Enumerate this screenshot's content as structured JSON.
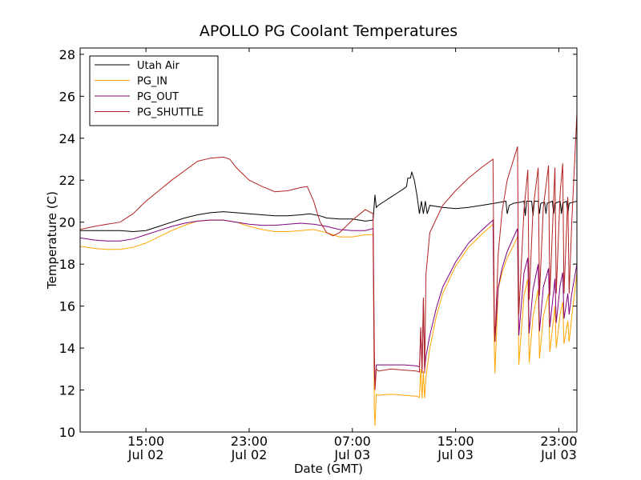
{
  "chart_data": {
    "type": "line",
    "title": "APOLLO PG Coolant Temperatures",
    "xlabel": "Date (GMT)",
    "ylabel": "Temperature (C)",
    "ylim": [
      10,
      28.3
    ],
    "xlim_hours": [
      9.9,
      48.4
    ],
    "x_unit": "hours since 2012-07-02 00:00 GMT",
    "y_ticks": [
      10,
      12,
      14,
      16,
      18,
      20,
      22,
      24,
      26,
      28
    ],
    "x_ticks": [
      {
        "hour": 15,
        "time": "15:00",
        "date": "Jul 02"
      },
      {
        "hour": 23,
        "time": "23:00",
        "date": "Jul 02"
      },
      {
        "hour": 31,
        "time": "07:00",
        "date": "Jul 03"
      },
      {
        "hour": 39,
        "time": "15:00",
        "date": "Jul 03"
      },
      {
        "hour": 47,
        "time": "23:00",
        "date": "Jul 03"
      }
    ],
    "legend_position": "top-left",
    "grid": false,
    "series": [
      {
        "name": "Utah Air",
        "color": "#000000",
        "points": [
          [
            9.9,
            19.6
          ],
          [
            11.5,
            19.6
          ],
          [
            13,
            19.6
          ],
          [
            14,
            19.55
          ],
          [
            15,
            19.6
          ],
          [
            16,
            19.8
          ],
          [
            17,
            20.0
          ],
          [
            18,
            20.2
          ],
          [
            19,
            20.35
          ],
          [
            20,
            20.45
          ],
          [
            21,
            20.5
          ],
          [
            22,
            20.45
          ],
          [
            23,
            20.4
          ],
          [
            24,
            20.35
          ],
          [
            25,
            20.3
          ],
          [
            26,
            20.3
          ],
          [
            27,
            20.35
          ],
          [
            27.7,
            20.4
          ],
          [
            28.5,
            20.3
          ],
          [
            29,
            20.2
          ],
          [
            30,
            20.15
          ],
          [
            31,
            20.15
          ],
          [
            32,
            20.05
          ],
          [
            32.6,
            20.1
          ],
          [
            32.75,
            21.3
          ],
          [
            32.85,
            20.7
          ],
          [
            33.0,
            20.8
          ],
          [
            33.5,
            21.0
          ],
          [
            34,
            21.2
          ],
          [
            34.5,
            21.4
          ],
          [
            35,
            21.6
          ],
          [
            35.2,
            21.7
          ],
          [
            35.3,
            22.1
          ],
          [
            35.5,
            22.1
          ],
          [
            35.6,
            22.4
          ],
          [
            35.8,
            22.0
          ],
          [
            36.0,
            21.3
          ],
          [
            36.2,
            20.4
          ],
          [
            36.35,
            21.0
          ],
          [
            36.5,
            20.4
          ],
          [
            36.65,
            21.0
          ],
          [
            36.8,
            20.4
          ],
          [
            37,
            20.8
          ],
          [
            38,
            20.7
          ],
          [
            39,
            20.65
          ],
          [
            40,
            20.7
          ],
          [
            41,
            20.8
          ],
          [
            42,
            20.9
          ],
          [
            42.9,
            21.0
          ],
          [
            43.0,
            20.4
          ],
          [
            43.15,
            20.8
          ],
          [
            43.5,
            20.9
          ],
          [
            44,
            20.95
          ],
          [
            44.3,
            21.0
          ],
          [
            44.4,
            20.3
          ],
          [
            44.5,
            21.0
          ],
          [
            44.9,
            21.0
          ],
          [
            45.0,
            20.3
          ],
          [
            45.1,
            21.0
          ],
          [
            45.4,
            21.0
          ],
          [
            45.5,
            20.4
          ],
          [
            45.6,
            20.9
          ],
          [
            45.9,
            20.95
          ],
          [
            46.0,
            20.4
          ],
          [
            46.1,
            20.9
          ],
          [
            46.5,
            21.0
          ],
          [
            46.6,
            20.4
          ],
          [
            46.7,
            20.9
          ],
          [
            47.1,
            21.0
          ],
          [
            47.2,
            20.4
          ],
          [
            47.3,
            20.9
          ],
          [
            47.6,
            21.0
          ],
          [
            47.7,
            20.4
          ],
          [
            47.8,
            20.9
          ],
          [
            48.4,
            21.0
          ]
        ]
      },
      {
        "name": "PG_IN",
        "color": "#ffa500",
        "points": [
          [
            9.9,
            18.85
          ],
          [
            11,
            18.75
          ],
          [
            12,
            18.7
          ],
          [
            13,
            18.7
          ],
          [
            14,
            18.8
          ],
          [
            15,
            19.0
          ],
          [
            16,
            19.3
          ],
          [
            17,
            19.6
          ],
          [
            18,
            19.85
          ],
          [
            19,
            20.05
          ],
          [
            20,
            20.1
          ],
          [
            21,
            20.1
          ],
          [
            22,
            20.0
          ],
          [
            23,
            19.8
          ],
          [
            24,
            19.65
          ],
          [
            25,
            19.55
          ],
          [
            26,
            19.55
          ],
          [
            27,
            19.6
          ],
          [
            28,
            19.65
          ],
          [
            29,
            19.5
          ],
          [
            30,
            19.3
          ],
          [
            31,
            19.3
          ],
          [
            32,
            19.4
          ],
          [
            32.6,
            19.4
          ],
          [
            32.7,
            11.0
          ],
          [
            32.75,
            10.3
          ],
          [
            32.85,
            11.8
          ],
          [
            33,
            11.75
          ],
          [
            34,
            11.8
          ],
          [
            35,
            11.75
          ],
          [
            36,
            11.7
          ],
          [
            36.2,
            11.65
          ],
          [
            36.3,
            13.0
          ],
          [
            36.4,
            11.6
          ],
          [
            36.5,
            12.9
          ],
          [
            36.6,
            11.6
          ],
          [
            36.7,
            12.6
          ],
          [
            37,
            14.0
          ],
          [
            37.5,
            15.5
          ],
          [
            38,
            16.6
          ],
          [
            39,
            17.9
          ],
          [
            40,
            18.8
          ],
          [
            41,
            19.4
          ],
          [
            41.9,
            19.9
          ],
          [
            42.0,
            14.0
          ],
          [
            42.05,
            12.8
          ],
          [
            42.3,
            16.8
          ],
          [
            42.6,
            17.6
          ],
          [
            43,
            18.3
          ],
          [
            43.5,
            18.9
          ],
          [
            43.8,
            19.3
          ],
          [
            43.9,
            13.2
          ],
          [
            44.3,
            16.5
          ],
          [
            44.6,
            17.3
          ],
          [
            44.7,
            13.3
          ],
          [
            45.0,
            15.5
          ],
          [
            45.4,
            16.8
          ],
          [
            45.5,
            13.5
          ],
          [
            45.8,
            15.5
          ],
          [
            46.2,
            16.6
          ],
          [
            46.3,
            13.8
          ],
          [
            46.7,
            16.0
          ],
          [
            46.8,
            14.0
          ],
          [
            47.1,
            15.6
          ],
          [
            47.3,
            16.2
          ],
          [
            47.4,
            14.2
          ],
          [
            47.7,
            15.3
          ],
          [
            47.8,
            14.3
          ],
          [
            48.0,
            15.5
          ],
          [
            48.4,
            17.6
          ]
        ]
      },
      {
        "name": "PG_OUT",
        "color": "#800080",
        "points": [
          [
            9.9,
            19.25
          ],
          [
            11,
            19.15
          ],
          [
            12,
            19.1
          ],
          [
            13,
            19.1
          ],
          [
            14,
            19.2
          ],
          [
            15,
            19.4
          ],
          [
            16,
            19.6
          ],
          [
            17,
            19.8
          ],
          [
            18,
            19.95
          ],
          [
            19,
            20.05
          ],
          [
            20,
            20.1
          ],
          [
            21,
            20.1
          ],
          [
            22,
            20.0
          ],
          [
            23,
            19.9
          ],
          [
            24,
            19.85
          ],
          [
            25,
            19.85
          ],
          [
            26,
            19.9
          ],
          [
            27,
            19.95
          ],
          [
            28,
            19.9
          ],
          [
            29,
            19.8
          ],
          [
            30,
            19.65
          ],
          [
            31,
            19.6
          ],
          [
            32,
            19.6
          ],
          [
            32.6,
            19.7
          ],
          [
            32.7,
            13.0
          ],
          [
            32.75,
            12.2
          ],
          [
            32.85,
            13.2
          ],
          [
            33,
            13.2
          ],
          [
            34,
            13.2
          ],
          [
            35,
            13.2
          ],
          [
            36,
            13.15
          ],
          [
            36.2,
            13.1
          ],
          [
            36.3,
            14.9
          ],
          [
            36.4,
            13.0
          ],
          [
            36.5,
            16.3
          ],
          [
            36.6,
            13.0
          ],
          [
            36.7,
            13.6
          ],
          [
            37,
            14.6
          ],
          [
            37.5,
            15.9
          ],
          [
            38,
            16.9
          ],
          [
            39,
            18.1
          ],
          [
            40,
            19.0
          ],
          [
            41,
            19.6
          ],
          [
            41.9,
            20.1
          ],
          [
            42.0,
            15.0
          ],
          [
            42.05,
            14.3
          ],
          [
            42.3,
            16.9
          ],
          [
            42.6,
            17.8
          ],
          [
            43,
            18.6
          ],
          [
            43.5,
            19.3
          ],
          [
            43.8,
            19.7
          ],
          [
            43.9,
            14.6
          ],
          [
            44.3,
            17.6
          ],
          [
            44.6,
            18.3
          ],
          [
            44.7,
            14.7
          ],
          [
            45.0,
            16.8
          ],
          [
            45.4,
            18.0
          ],
          [
            45.5,
            14.8
          ],
          [
            45.8,
            16.9
          ],
          [
            46.2,
            17.8
          ],
          [
            46.3,
            15.0
          ],
          [
            46.7,
            17.3
          ],
          [
            46.8,
            15.2
          ],
          [
            47.1,
            17.0
          ],
          [
            47.3,
            17.6
          ],
          [
            47.4,
            15.4
          ],
          [
            47.7,
            16.6
          ],
          [
            47.8,
            15.6
          ],
          [
            48.0,
            16.6
          ],
          [
            48.4,
            18.0
          ]
        ]
      },
      {
        "name": "PG_SHUTTLE",
        "color": "#b22222",
        "points": [
          [
            9.9,
            19.65
          ],
          [
            11,
            19.8
          ],
          [
            12,
            19.9
          ],
          [
            13,
            20.0
          ],
          [
            14,
            20.4
          ],
          [
            15,
            21.0
          ],
          [
            16,
            21.5
          ],
          [
            17,
            22.0
          ],
          [
            18,
            22.45
          ],
          [
            19,
            22.9
          ],
          [
            20,
            23.05
          ],
          [
            21,
            23.1
          ],
          [
            21.5,
            23.0
          ],
          [
            22,
            22.6
          ],
          [
            23,
            22.0
          ],
          [
            24,
            21.7
          ],
          [
            25,
            21.45
          ],
          [
            26,
            21.5
          ],
          [
            27,
            21.65
          ],
          [
            27.5,
            21.7
          ],
          [
            28,
            21.0
          ],
          [
            28.5,
            20.0
          ],
          [
            29,
            19.5
          ],
          [
            29.5,
            19.35
          ],
          [
            30,
            19.5
          ],
          [
            31,
            20.1
          ],
          [
            32,
            20.6
          ],
          [
            32.6,
            20.4
          ],
          [
            32.7,
            14.0
          ],
          [
            32.75,
            12.0
          ],
          [
            32.85,
            13.0
          ],
          [
            33,
            12.9
          ],
          [
            34,
            13.0
          ],
          [
            35,
            12.95
          ],
          [
            36,
            12.9
          ],
          [
            36.2,
            12.85
          ],
          [
            36.3,
            15.0
          ],
          [
            36.4,
            12.8
          ],
          [
            36.5,
            16.4
          ],
          [
            36.6,
            12.8
          ],
          [
            36.7,
            17.5
          ],
          [
            37,
            19.5
          ],
          [
            38,
            20.8
          ],
          [
            39,
            21.5
          ],
          [
            40,
            22.1
          ],
          [
            41,
            22.6
          ],
          [
            41.9,
            23.0
          ],
          [
            42.0,
            15.5
          ],
          [
            42.05,
            14.3
          ],
          [
            42.3,
            18.5
          ],
          [
            42.6,
            20.5
          ],
          [
            43,
            22.0
          ],
          [
            43.5,
            23.0
          ],
          [
            43.8,
            23.6
          ],
          [
            43.9,
            15.6
          ],
          [
            44.3,
            20.6
          ],
          [
            44.6,
            22.5
          ],
          [
            44.7,
            16.3
          ],
          [
            45.0,
            20.6
          ],
          [
            45.4,
            22.6
          ],
          [
            45.5,
            16.5
          ],
          [
            45.8,
            20.7
          ],
          [
            46.2,
            22.7
          ],
          [
            46.3,
            16.5
          ],
          [
            46.7,
            22.6
          ],
          [
            46.8,
            16.6
          ],
          [
            47.1,
            21.4
          ],
          [
            47.3,
            22.8
          ],
          [
            47.4,
            16.6
          ],
          [
            47.7,
            21.2
          ],
          [
            47.8,
            16.6
          ],
          [
            48.0,
            20.0
          ],
          [
            48.4,
            25.2
          ]
        ]
      }
    ]
  }
}
